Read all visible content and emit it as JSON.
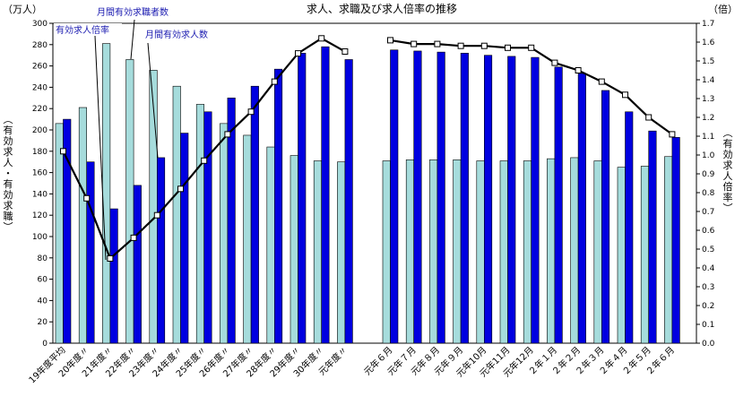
{
  "chart_data": {
    "type": "bar",
    "title": "求人、求職及び求人倍率の推移",
    "left_unit": "（万人）",
    "right_unit": "（倍）",
    "left_axis_label": "（有効求人・有効求職）",
    "right_axis_label": "（有効求人倍率）",
    "ylim_left": [
      0,
      300
    ],
    "ylim_right": [
      0,
      1.7
    ],
    "left_ticks": [
      0,
      20,
      40,
      60,
      80,
      100,
      120,
      140,
      160,
      180,
      200,
      220,
      240,
      260,
      280,
      300
    ],
    "right_ticks": [
      "0.0",
      "0.1",
      "0.2",
      "0.3",
      "0.4",
      "0.5",
      "0.6",
      "0.7",
      "0.8",
      "0.9",
      "1.0",
      "1.1",
      "1.2",
      "1.3",
      "1.4",
      "1.5",
      "1.6",
      "1.7"
    ],
    "groups": [
      {
        "categories": [
          "19年度平均",
          "20年度〃",
          "21年度〃",
          "22年度〃",
          "23年度〃",
          "24年度〃",
          "25年度〃",
          "26年度〃",
          "27年度〃",
          "28年度〃",
          "29年度〃",
          "30年度〃",
          "元年度〃"
        ],
        "seekers": [
          206,
          221,
          281,
          266,
          256,
          241,
          224,
          206,
          195,
          184,
          176,
          171,
          170
        ],
        "openings": [
          210,
          170,
          126,
          148,
          174,
          197,
          217,
          230,
          241,
          257,
          272,
          278,
          266
        ],
        "ratio": [
          1.02,
          0.77,
          0.45,
          0.56,
          0.68,
          0.82,
          0.97,
          1.11,
          1.23,
          1.39,
          1.54,
          1.62,
          1.55
        ]
      },
      {
        "categories": [
          "元年６月",
          "元年７月",
          "元年８月",
          "元年９月",
          "元年10月",
          "元年11月",
          "元年12月",
          "２年１月",
          "２年２月",
          "２年３月",
          "２年４月",
          "２年５月",
          "２年６月"
        ],
        "seekers": [
          171,
          172,
          172,
          172,
          171,
          171,
          171,
          173,
          174,
          171,
          165,
          166,
          175
        ],
        "openings": [
          275,
          274,
          273,
          272,
          270,
          269,
          268,
          259,
          253,
          237,
          217,
          199,
          193
        ],
        "ratio": [
          1.61,
          1.59,
          1.59,
          1.58,
          1.58,
          1.57,
          1.57,
          1.49,
          1.45,
          1.39,
          1.32,
          1.2,
          1.11
        ]
      }
    ],
    "series": [
      {
        "name": "有効求職者数",
        "color": "#a6dcdc",
        "type": "bar"
      },
      {
        "name": "月間有効求人数",
        "color": "#0000e0",
        "type": "bar"
      },
      {
        "name": "有効求人倍率",
        "color": "#000000",
        "type": "line",
        "axis": "right"
      }
    ],
    "annotations": [
      "有効求人倍率",
      "月間有効求職者数",
      "月間有効求人数"
    ]
  }
}
